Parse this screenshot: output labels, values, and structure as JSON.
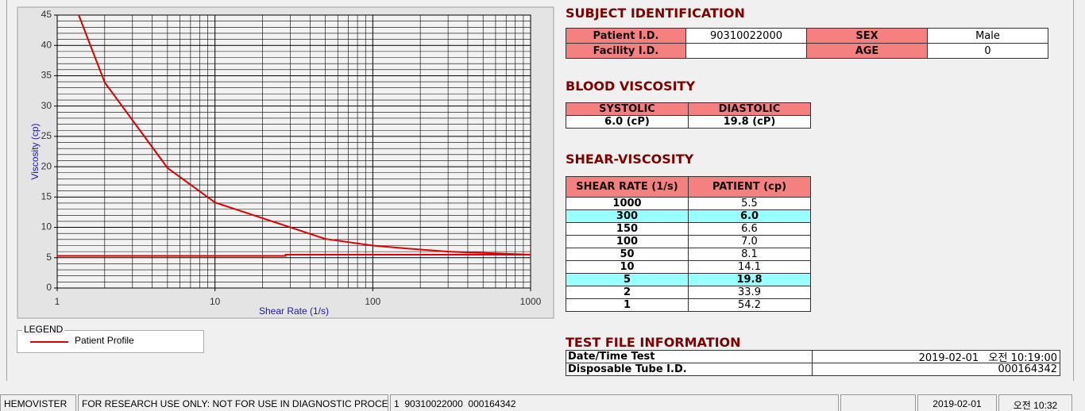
{
  "chart_data": {
    "type": "line",
    "xlabel": "Shear Rate (1/s)",
    "ylabel": "Viscosity (cp)",
    "xscale": "log",
    "xlim": [
      1,
      1000
    ],
    "xticks": [
      1,
      10,
      100,
      1000
    ],
    "xminorticks": [
      2,
      3,
      4,
      5,
      6,
      7,
      8,
      9,
      20,
      30,
      40,
      50,
      60,
      70,
      80,
      90,
      200,
      300,
      400,
      500,
      600,
      700,
      800,
      900
    ],
    "ylim": [
      0,
      45
    ],
    "yticks": [
      0,
      5,
      10,
      15,
      20,
      25,
      30,
      35,
      40,
      45
    ],
    "yminorticks": [
      1,
      2,
      3,
      4,
      6,
      7,
      8,
      9,
      11,
      12,
      13,
      14,
      16,
      17,
      18,
      19,
      21,
      22,
      23,
      24,
      26,
      27,
      28,
      29,
      31,
      32,
      33,
      34,
      36,
      37,
      38,
      39,
      41,
      42,
      43,
      44
    ],
    "grid": true,
    "legend_title": "LEGEND",
    "series": [
      {
        "name": "Patient Profile",
        "color": "#dd0000",
        "x": [
          1,
          2,
          5,
          10,
          50,
          100,
          150,
          300,
          1000
        ],
        "values": [
          54.2,
          33.9,
          19.8,
          14.1,
          8.1,
          7.0,
          6.6,
          6.0,
          5.5
        ]
      },
      {
        "color": "#dd0000",
        "x": [
          1,
          28,
          28,
          1000
        ],
        "values": [
          5.3,
          5.3,
          5.5,
          5.5
        ]
      }
    ]
  },
  "subject": {
    "title": "SUBJECT IDENTIFICATION",
    "fields": [
      {
        "label": "Patient I.D.",
        "value": "90310022000"
      },
      {
        "label": "SEX",
        "value": "Male"
      },
      {
        "label": "Facility I.D."
      },
      {
        "label": "AGE",
        "value": 0
      }
    ]
  },
  "blood_viscosity": {
    "title": "BLOOD VISCOSITY",
    "headers": [
      "SYSTOLIC",
      "DIASTOLIC"
    ],
    "values": [
      "6.0 (cP)",
      "19.8 (cP)"
    ]
  },
  "shear_viscosity": {
    "title": "SHEAR-VISCOSITY",
    "headers": [
      "SHEAR RATE (1/s)",
      "PATIENT (cp)"
    ],
    "rows": [
      [
        "1000",
        "5.5"
      ],
      [
        "300",
        "6.0"
      ],
      [
        "150",
        "6.6"
      ],
      [
        "100",
        "7.0"
      ],
      [
        "50",
        "8.1"
      ],
      [
        "10",
        "14.1"
      ],
      [
        "5",
        "19.8"
      ],
      [
        "2",
        "33.9"
      ],
      [
        "1",
        "54.2"
      ]
    ],
    "highlighted_rows": [
      1,
      6
    ]
  },
  "test_file": {
    "title": "TEST FILE INFORMATION",
    "rows": [
      [
        "Date/Time Test",
        "2019-02-01   오전 10:19:00"
      ],
      [
        "Disposable Tube I.D.",
        "000164342"
      ]
    ]
  },
  "status_bar": [
    "HEMOVISTER",
    "FOR RESEARCH USE ONLY: NOT FOR USE IN DIAGNOSTIC PROCEDURES",
    "1  90310022000  000164342",
    null,
    "2019-02-01",
    "오전 10:32"
  ]
}
